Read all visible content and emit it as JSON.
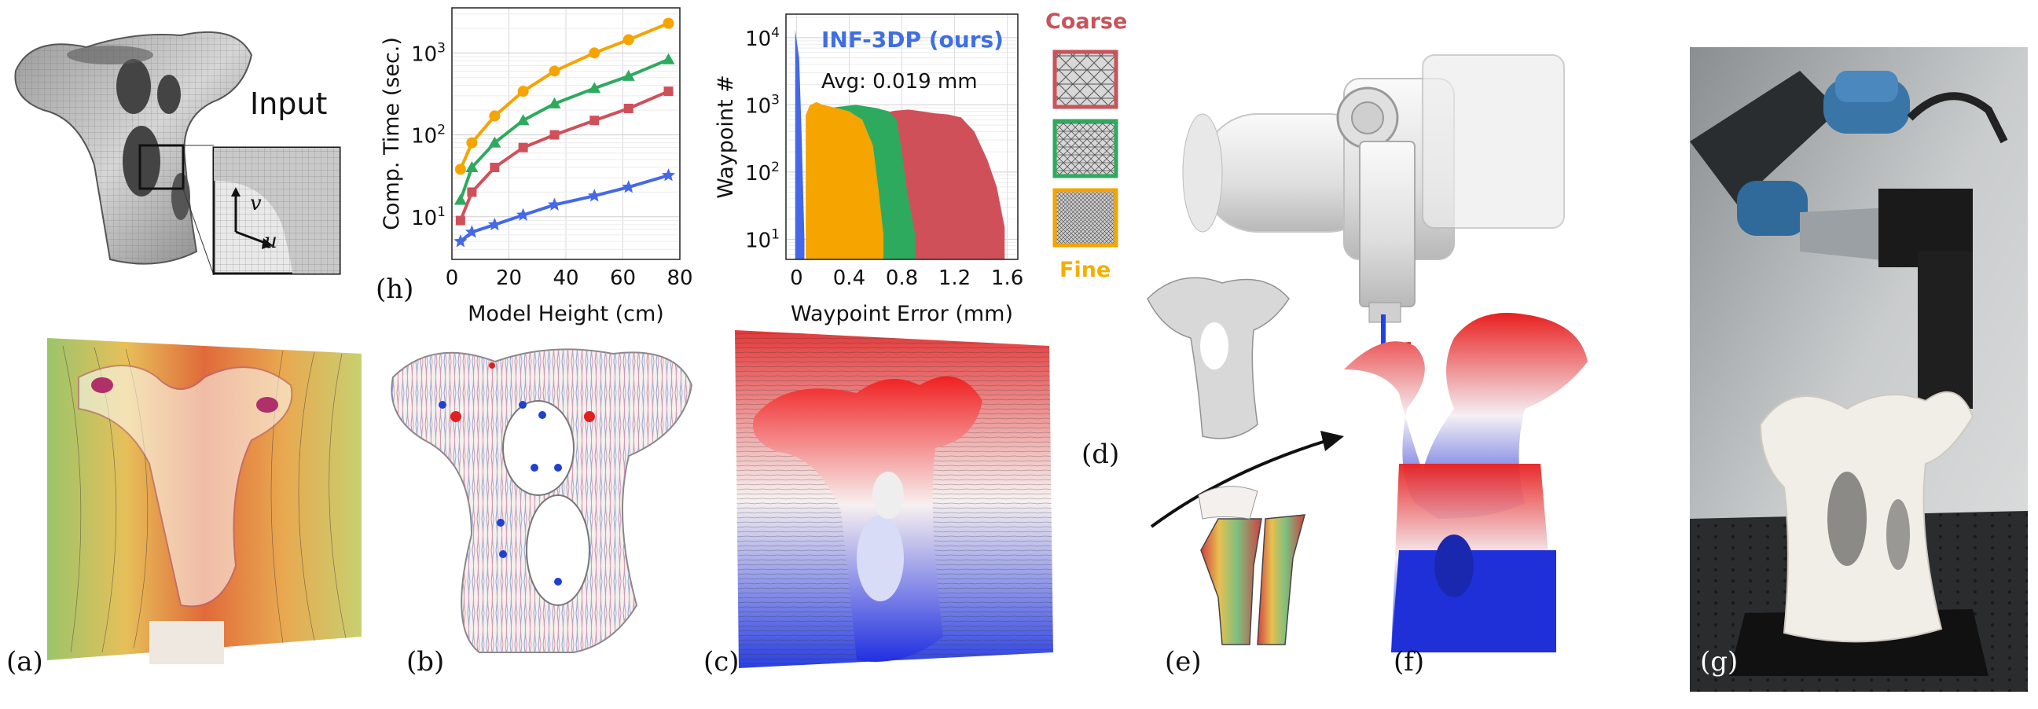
{
  "input_label": "Input",
  "uv_labels": {
    "v": "v",
    "u": "u"
  },
  "panel_labels": {
    "a": "(a)",
    "b": "(b)",
    "c": "(c)",
    "d": "(d)",
    "e": "(e)",
    "f": "(f)",
    "g": "(g)",
    "h": "(h)"
  },
  "resolution": {
    "coarse": "Coarse",
    "fine": "Fine"
  },
  "colors": {
    "orange": "#f5a400",
    "green": "#2eaa5e",
    "red": "#d0505a",
    "blue": "#4468e8",
    "coarse_text": "#c8535a",
    "fine_text": "#f3b000",
    "title_blue": "#3f6fe0"
  },
  "chart_data": [
    {
      "type": "line",
      "xlabel": "Model Height (cm)",
      "ylabel": "Comp. Time (sec.)",
      "xlim": [
        0,
        80
      ],
      "ylim_log": [
        0.48,
        3.55
      ],
      "yscale": "log",
      "xticks": [
        0,
        20,
        40,
        60,
        80
      ],
      "yticks": [
        {
          "exp": 1
        },
        {
          "exp": 2
        },
        {
          "exp": 3
        }
      ],
      "grid": true,
      "x": [
        3,
        7,
        15,
        25,
        36,
        50,
        62,
        76
      ],
      "series": [
        {
          "color": "#f5a400",
          "marker": "circle",
          "values": [
            38,
            80,
            170,
            340,
            600,
            1000,
            1450,
            2300
          ]
        },
        {
          "color": "#2eaa5e",
          "marker": "triangle",
          "values": [
            16,
            40,
            80,
            150,
            240,
            370,
            520,
            830
          ]
        },
        {
          "color": "#d0505a",
          "marker": "square",
          "values": [
            9,
            20,
            40,
            70,
            100,
            150,
            210,
            340
          ]
        },
        {
          "color": "#4468e8",
          "marker": "star",
          "values": [
            5,
            6.5,
            8,
            10.5,
            14,
            18,
            23,
            32
          ]
        }
      ]
    },
    {
      "type": "bar",
      "xlabel": "Waypoint Error (mm)",
      "ylabel": "Waypoint #",
      "title": "INF-3DP (ours)",
      "annotation": "Avg: 0.019 mm",
      "xlim": [
        -0.08,
        1.68
      ],
      "xticks": [
        "0",
        "0.4",
        "0.8",
        "1.2",
        "1.6"
      ],
      "yscale": "log",
      "yticks": [
        {
          "exp": 1
        },
        {
          "exp": 2
        },
        {
          "exp": 3
        },
        {
          "exp": 4
        }
      ],
      "grid": true,
      "series": [
        {
          "color": "#d0505a",
          "bins": [
            [
              0.28,
              700
            ],
            [
              0.4,
              850
            ],
            [
              0.55,
              900
            ],
            [
              0.65,
              750
            ],
            [
              0.75,
              820
            ],
            [
              0.85,
              850
            ],
            [
              0.95,
              800
            ],
            [
              1.05,
              750
            ],
            [
              1.15,
              720
            ],
            [
              1.25,
              650
            ],
            [
              1.35,
              400
            ],
            [
              1.45,
              150
            ],
            [
              1.52,
              60
            ],
            [
              1.58,
              15
            ]
          ]
        },
        {
          "color": "#2eaa5e",
          "bins": [
            [
              0.25,
              900
            ],
            [
              0.45,
              1000
            ],
            [
              0.6,
              900
            ],
            [
              0.7,
              800
            ],
            [
              0.76,
              600
            ],
            [
              0.8,
              200
            ],
            [
              0.84,
              50
            ],
            [
              0.9,
              12
            ]
          ]
        },
        {
          "color": "#f5a400",
          "bins": [
            [
              0.07,
              700
            ],
            [
              0.1,
              980
            ],
            [
              0.15,
              1100
            ],
            [
              0.2,
              1000
            ],
            [
              0.3,
              900
            ],
            [
              0.4,
              800
            ],
            [
              0.5,
              600
            ],
            [
              0.58,
              250
            ],
            [
              0.62,
              60
            ],
            [
              0.66,
              12
            ]
          ]
        },
        {
          "color": "#4468e8",
          "bins": [
            [
              -0.01,
              13000
            ],
            [
              0.02,
              5000
            ],
            [
              0.04,
              300
            ],
            [
              0.06,
              10
            ]
          ]
        }
      ]
    }
  ],
  "axis_exp_base": "10",
  "tick_exp": {
    "1": "1",
    "2": "2",
    "3": "3",
    "4": "4"
  }
}
